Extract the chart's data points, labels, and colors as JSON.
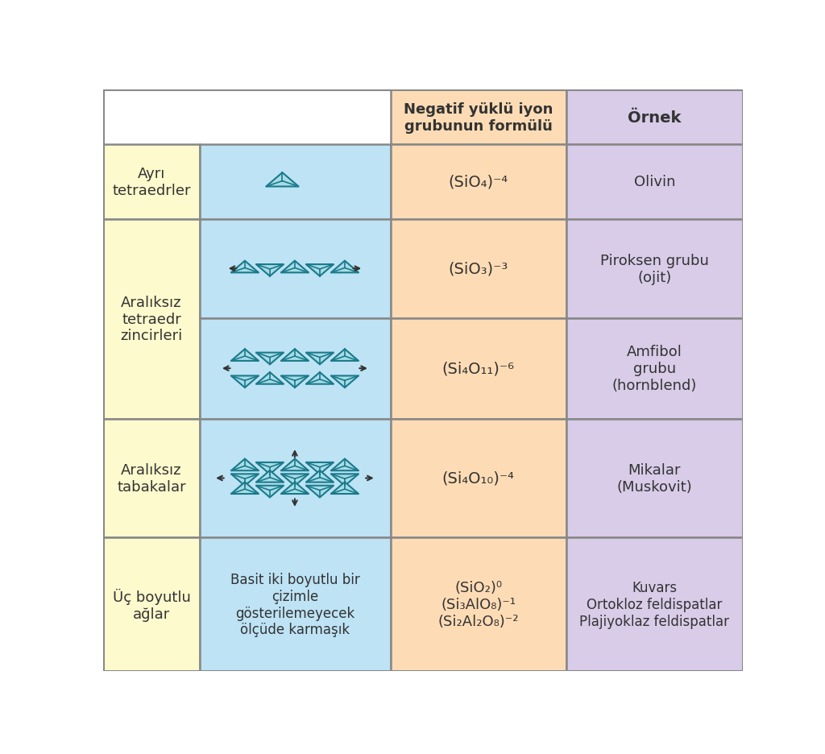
{
  "header_formula_text": "Negatif yüklü iyon\ngrubunun formülü",
  "header_example_text": "Örnek",
  "row1_label": "Ayrı\ntetraedrler",
  "row1_formula": "(SiO₄)⁻⁴",
  "row1_example": "Olivin",
  "row2_label": "Aralıksız\ntetraedr\nzincirleri",
  "row2a_formula": "(SiO₃)⁻³",
  "row2a_example": "Piroksen grubu\n(ojit)",
  "row2b_formula": "(Si₄O₁₁)⁻⁶",
  "row2b_example": "Amfibol\ngrubu\n(hornblend)",
  "row3_label": "Aralıksız\ntabakalar",
  "row3_formula": "(Si₄O₁₀)⁻⁴",
  "row3_example": "Mikalar\n(Muskovit)",
  "row4_label": "Üç boyutlu\nağlar",
  "row4_image_text": "Basit iki boyutlu bir\nçizimle\ngösterilemeyecek\nölçüde karmaşık",
  "row4_formula": "(SiO₂)⁰\n(Si₃AlO₈)⁻¹\n(Si₂Al₂O₈)⁻²",
  "row4_example": "Kuvars\nOrtokloz feldispatlar\nPlajiyoklaz feldispatlar",
  "color_yellow": "#FDFACD",
  "color_blue": "#BDE3F5",
  "color_peach": "#FDDCB5",
  "color_purple": "#D8CCE8",
  "color_border": "#888888",
  "color_teal_edge": "#1A7A8A",
  "color_teal_fill": "#A8DCE8",
  "color_text_dark": "#333333"
}
